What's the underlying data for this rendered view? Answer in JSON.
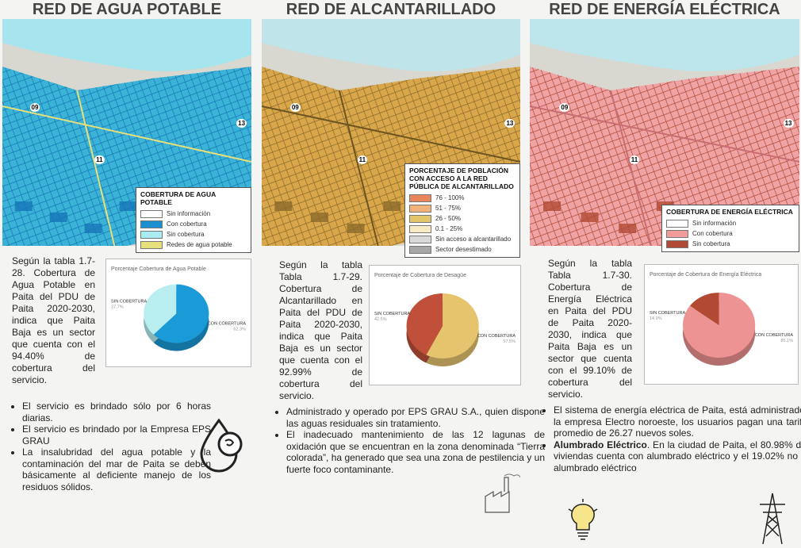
{
  "columns": [
    {
      "title": "RED DE AGUA POTABLE",
      "map_labels": [
        "09",
        "11",
        "13"
      ],
      "legend": {
        "title": "COBERTURA DE AGUA POTABLE",
        "items": [
          {
            "name": "Sin información",
            "color": "#ffffff"
          },
          {
            "name": "Con cobertura",
            "color": "#1b8fcf"
          },
          {
            "name": "Sin cobertura",
            "color": "#a9ecf2"
          },
          {
            "name": "Redes de agua potable",
            "color": "#e6df7a"
          }
        ]
      },
      "paragraph": "Según la tabla 1.7-28. Cobertura de Agua Potable en Paita del PDU de Paita 2020-2030, indica que Paita Baja es un sector que cuenta con el 94.40% de cobertura del servicio.",
      "pie": {
        "title": "Porcentaje Cobertura de Agua Potable",
        "labels": [
          "SIN COBERTURA",
          "CON COBERTURA"
        ],
        "values": [
          37.7,
          62.3
        ],
        "value_labels": [
          "37.7%",
          "62.3%"
        ],
        "colors": [
          "#b8eef0",
          "#1a9ad6"
        ]
      },
      "bullets": [
        "El servicio es brindado sólo por 6 horas diarias.",
        "El servicio es brindado por la Empresa EPS GRAU",
        "La insalubridad del agua potable y la contaminación del mar de Paita se deben básicamente al deficiente manejo de los residuos sólidos."
      ]
    },
    {
      "title": "RED DE ALCANTARILLADO",
      "map_labels": [
        "09",
        "11",
        "13"
      ],
      "legend": {
        "title": "PORCENTAJE DE POBLACIÓN CON ACCESO A LA RED PÚBLICA DE ALCANTARILLADO",
        "items": [
          {
            "name": "76 - 100%",
            "color": "#e8855a"
          },
          {
            "name": "51 - 75%",
            "color": "#f0b27a"
          },
          {
            "name": "26 - 50%",
            "color": "#e3c56a"
          },
          {
            "name": "0.1 - 25%",
            "color": "#f7e9c4"
          },
          {
            "name": "Sin acceso a alcantarillado",
            "color": "#d9d9d9"
          },
          {
            "name": "Sector desestimado",
            "color": "#a6a6a6"
          }
        ]
      },
      "paragraph": "Según la tabla Tabla 1.7-29. Cobertura de Alcantarillado en Paita del PDU de Paita 2020-2030, indica que Paita Baja es un sector que cuenta con el 92.99% de cobertura del servicio.",
      "pie": {
        "title": "Porcentaje de Cobertura de Desagüe",
        "labels": [
          "SIN COBERTURA",
          "CON COBERTURA"
        ],
        "values": [
          42.5,
          57.5
        ],
        "value_labels": [
          "42.5%",
          "57.5%"
        ],
        "colors": [
          "#c0503a",
          "#e6c46e"
        ]
      },
      "bullets": [
        "Administrado y operado por EPS GRAU S.A., quien dispone las aguas residuales sin tratamiento.",
        "El inadecuado mantenimiento de las 12 lagunas de oxidación que se encuentran en la zona denominada “Tierra colorada”, ha generado que sea una zona de pestilencia y un fuerte foco contaminante."
      ]
    },
    {
      "title": "RED DE ENERGÍA ELÉCTRICA",
      "map_labels": [
        "09",
        "11",
        "13"
      ],
      "legend": {
        "title": "COBERTURA DE ENERGÍA ELÉCTRICA",
        "items": [
          {
            "name": "Sin información",
            "color": "#ffffff"
          },
          {
            "name": "Con cobertura",
            "color": "#f19b9b"
          },
          {
            "name": "Sin cobertura",
            "color": "#b04a35"
          }
        ]
      },
      "paragraph": "Según la tabla Tabla 1.7-30. Cobertura de Energía Eléctrica en Paita del PDU de Paita 2020-2030, indica que Paita Baja es un sector que cuenta con el 99.10% de cobertura del servicio.",
      "pie": {
        "title": "Porcentaje de Cobertura de Energía Eléctrica",
        "labels": [
          "SIN COBERTURA",
          "CON COBERTURA"
        ],
        "values": [
          14.9,
          85.1
        ],
        "value_labels": [
          "14.9%",
          "85.1%"
        ],
        "colors": [
          "#b24a33",
          "#ee9393"
        ]
      },
      "bullets": [
        {
          "bold": "",
          "text": "El sistema de energía eléctrica de Paita, está administrado por la empresa Electro noroeste, los usuarios pagan una tarifa en promedio de 26.27 nuevos soles."
        },
        {
          "bold": "Alumbrado Eléctrico",
          "text": ". En la ciudad de Paita, el 80.98% de las viviendas cuenta con alumbrado eléctrico y el 19.02% no tiene alumbrado eléctrico"
        }
      ]
    }
  ]
}
